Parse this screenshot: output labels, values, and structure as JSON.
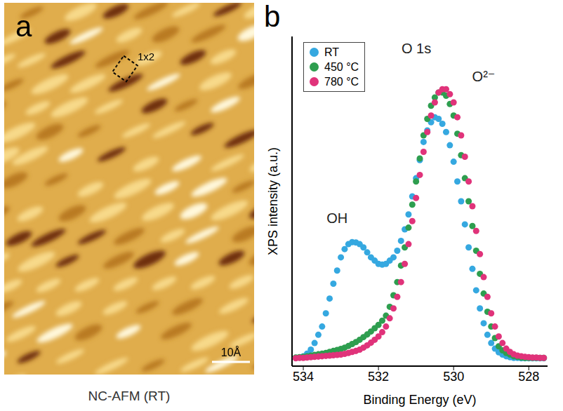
{
  "image_panel": {
    "letter": "a",
    "cell_label": "1x2",
    "scale_bar": "10Å",
    "caption": "NC-AFM (RT)"
  },
  "chart_panel": {
    "letter": "b"
  },
  "chart_data": {
    "type": "scatter",
    "title": "O 1s",
    "x_label": "Binding Energy (eV)",
    "y_label": "XPS intensity (a.u.)",
    "xlim": [
      534.3,
      527.5
    ],
    "xticks": [
      534,
      532,
      530,
      528
    ],
    "ylim": [
      0,
      100
    ],
    "tick_labels": "x",
    "legend": "upper left",
    "marker": "circle",
    "annotations": [
      {
        "text": "OH",
        "x": 533.1,
        "y": 45
      },
      {
        "text": "O²⁻",
        "x": 529.2,
        "y": 88
      }
    ],
    "x": [
      534.2,
      534.1,
      534.0,
      533.9,
      533.8,
      533.7,
      533.6,
      533.5,
      533.4,
      533.3,
      533.2,
      533.1,
      533.0,
      532.9,
      532.8,
      532.7,
      532.6,
      532.5,
      532.4,
      532.3,
      532.2,
      532.1,
      532.0,
      531.9,
      531.8,
      531.7,
      531.6,
      531.5,
      531.4,
      531.3,
      531.2,
      531.1,
      531.0,
      530.9,
      530.8,
      530.7,
      530.6,
      530.5,
      530.4,
      530.3,
      530.2,
      530.1,
      530.0,
      529.9,
      529.8,
      529.7,
      529.6,
      529.5,
      529.4,
      529.3,
      529.2,
      529.1,
      529.0,
      528.9,
      528.8,
      528.7,
      528.6,
      528.5,
      528.4,
      528.3,
      528.2,
      528.1,
      528.0,
      527.9,
      527.8,
      527.7,
      527.6
    ],
    "series": [
      {
        "name": "RT",
        "color": "#35a8e0",
        "values": [
          2.5,
          2.6,
          3,
          3.8,
          5,
          7,
          9.5,
          12,
          16,
          20.5,
          25,
          29,
          33,
          35.5,
          37,
          37.6,
          37.5,
          37,
          36,
          34.5,
          33,
          32,
          31,
          30.8,
          31,
          32,
          33,
          35,
          38,
          41.5,
          46,
          51.5,
          57,
          62.5,
          68,
          71.5,
          74,
          75.5,
          75,
          73.5,
          71,
          67,
          62,
          56,
          50,
          43,
          36,
          29.5,
          23,
          17.5,
          13,
          9.5,
          7,
          5.3,
          4.2,
          3.5,
          3,
          2.7,
          2.5,
          2.5,
          2.4,
          2.4,
          2.4,
          2.4,
          2.4,
          2.4,
          2.4
        ]
      },
      {
        "name": "450 °C",
        "color": "#2e9e4f",
        "values": [
          2.6,
          2.7,
          2.8,
          3,
          3.2,
          3.4,
          3.6,
          3.8,
          4,
          4.3,
          4.6,
          4.9,
          5.2,
          5.6,
          6.1,
          6.7,
          7.3,
          8,
          8.8,
          9.6,
          10.5,
          11.5,
          12.5,
          13.8,
          15.3,
          18,
          21.5,
          25.5,
          30.5,
          36,
          42,
          49,
          56,
          63,
          70,
          75,
          79,
          81.5,
          83,
          83,
          82,
          79.5,
          76,
          70.5,
          64,
          57,
          50,
          42.5,
          35,
          28,
          22,
          16.5,
          12,
          8.5,
          6,
          4.8,
          4,
          3.5,
          3,
          2.8,
          2.6,
          2.5,
          2.5,
          2.5,
          2.5,
          2.5,
          2.5
        ]
      },
      {
        "name": "780 °C",
        "color": "#e0337a",
        "values": [
          2.4,
          2.5,
          2.5,
          2.6,
          2.7,
          2.8,
          2.9,
          3,
          3.1,
          3.2,
          3.3,
          3.4,
          3.5,
          3.7,
          4,
          4.3,
          4.6,
          5,
          5.6,
          6.3,
          7.1,
          8,
          9,
          10.3,
          12,
          14.5,
          17.5,
          21,
          25.5,
          31,
          37,
          44,
          51,
          58,
          65,
          71,
          76,
          80,
          83,
          84,
          84,
          82.5,
          80,
          75.5,
          70,
          63.5,
          56,
          48.5,
          41,
          34,
          27,
          21,
          16,
          12,
          9,
          7,
          5.3,
          4.3,
          3.6,
          3.2,
          3,
          2.8,
          2.7,
          2.6,
          2.6,
          2.5,
          2.5
        ]
      }
    ]
  }
}
